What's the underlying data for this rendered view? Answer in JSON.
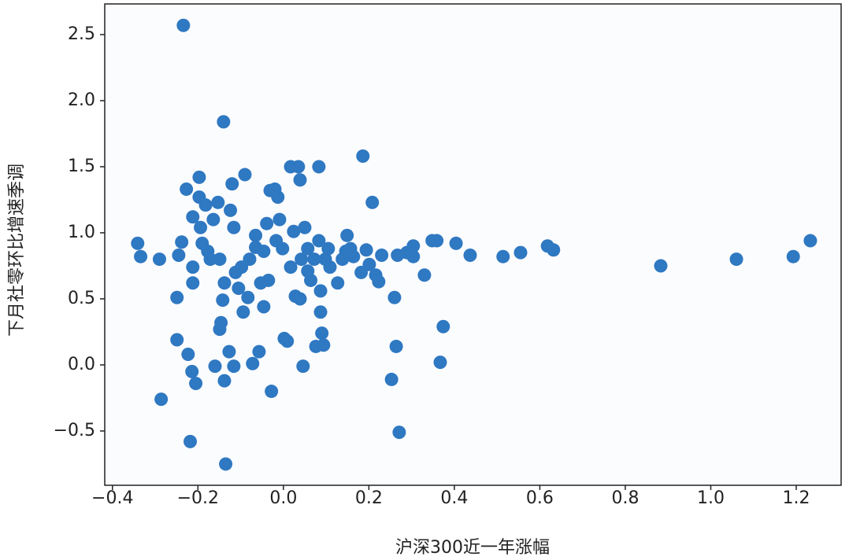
{
  "chart_data": {
    "type": "scatter",
    "x_label": "沪深300近一年涨幅",
    "y_label": "下月社零环比增速季调",
    "color": "#2f78c2",
    "xlim": [
      -0.418,
      1.305
    ],
    "ylim": [
      -0.911,
      2.732
    ],
    "xticks": [
      {
        "value": -0.4,
        "label": "−0.4"
      },
      {
        "value": -0.2,
        "label": "−0.2"
      },
      {
        "value": 0,
        "label": "0.0"
      },
      0.2,
      0.4,
      0.6,
      0.8,
      {
        "value": 1,
        "label": "1.0"
      },
      1.2
    ],
    "yticks": [
      {
        "value": -0.5,
        "label": "−0.5"
      },
      {
        "value": 0,
        "label": "0.0"
      },
      0.5,
      {
        "value": 1,
        "label": "1.0"
      },
      1.5,
      {
        "value": 2,
        "label": "2.0"
      },
      2.5
    ],
    "x": [
      -0.234,
      -0.14,
      -0.341,
      -0.334,
      -0.29,
      -0.286,
      -0.249,
      -0.249,
      -0.245,
      -0.238,
      -0.227,
      -0.223,
      -0.218,
      -0.214,
      -0.205,
      -0.212,
      -0.212,
      -0.212,
      -0.197,
      -0.197,
      -0.194,
      -0.19,
      -0.182,
      -0.177,
      -0.171,
      -0.164,
      -0.153,
      -0.149,
      -0.146,
      -0.149,
      -0.142,
      -0.138,
      -0.135,
      -0.138,
      -0.16,
      -0.127,
      -0.12,
      -0.124,
      -0.116,
      -0.112,
      -0.116,
      -0.105,
      -0.098,
      -0.09,
      -0.094,
      -0.083,
      -0.079,
      -0.072,
      -0.065,
      -0.065,
      -0.057,
      -0.053,
      -0.046,
      -0.046,
      -0.039,
      -0.031,
      -0.028,
      -0.035,
      -0.02,
      -0.017,
      -0.013,
      -0.009,
      -0.002,
      0.002,
      0.009,
      0.017,
      0.017,
      0.024,
      0.028,
      0.035,
      0.039,
      0.039,
      0.046,
      0.05,
      0.057,
      0.064,
      0.072,
      0.076,
      0.083,
      0.083,
      0.087,
      0.087,
      0.09,
      0.094,
      0.098,
      0.105,
      0.127,
      0.138,
      0.149,
      0.157,
      0.164,
      0.182,
      0.186,
      0.194,
      0.201,
      0.208,
      0.216,
      0.223,
      0.23,
      0.253,
      0.26,
      0.264,
      0.267,
      0.271,
      0.289,
      0.304,
      0.304,
      0.33,
      0.348,
      0.359,
      0.367,
      0.374,
      0.404,
      0.437,
      0.514,
      0.555,
      0.618,
      0.632,
      0.883,
      1.06,
      1.193,
      1.233,
      0.042,
      0.057,
      0.109,
      0.146
    ],
    "values": [
      2.57,
      1.84,
      0.92,
      0.82,
      0.8,
      -0.26,
      0.51,
      0.19,
      0.83,
      0.93,
      1.33,
      0.08,
      -0.58,
      -0.05,
      -0.14,
      1.12,
      0.74,
      0.62,
      1.42,
      1.27,
      1.04,
      0.92,
      1.21,
      0.86,
      0.8,
      1.1,
      1.23,
      0.8,
      0.32,
      0.27,
      0.49,
      0.62,
      -0.75,
      -0.12,
      -0.01,
      0.1,
      1.37,
      1.17,
      1.04,
      0.7,
      -0.01,
      0.58,
      0.74,
      1.44,
      0.4,
      0.51,
      0.8,
      0.01,
      0.98,
      0.89,
      0.1,
      0.62,
      0.44,
      0.86,
      1.07,
      1.32,
      -0.2,
      0.64,
      1.33,
      0.94,
      1.27,
      1.1,
      0.88,
      0.2,
      0.18,
      1.5,
      0.74,
      1.01,
      0.52,
      1.5,
      1.4,
      0.5,
      -0.01,
      1.04,
      0.88,
      0.64,
      0.8,
      0.14,
      1.5,
      0.94,
      0.56,
      0.4,
      0.24,
      0.15,
      0.8,
      0.88,
      0.62,
      0.8,
      0.98,
      0.88,
      0.82,
      0.7,
      1.58,
      0.87,
      0.76,
      1.23,
      0.68,
      0.63,
      0.83,
      -0.11,
      0.51,
      0.14,
      0.83,
      -0.51,
      0.85,
      0.9,
      0.82,
      0.68,
      0.94,
      0.94,
      0.02,
      0.29,
      0.92,
      0.83,
      0.82,
      0.85,
      0.9,
      0.87,
      0.75,
      0.8,
      0.82,
      0.94,
      0.8,
      0.71,
      0.74,
      0.86
    ]
  }
}
